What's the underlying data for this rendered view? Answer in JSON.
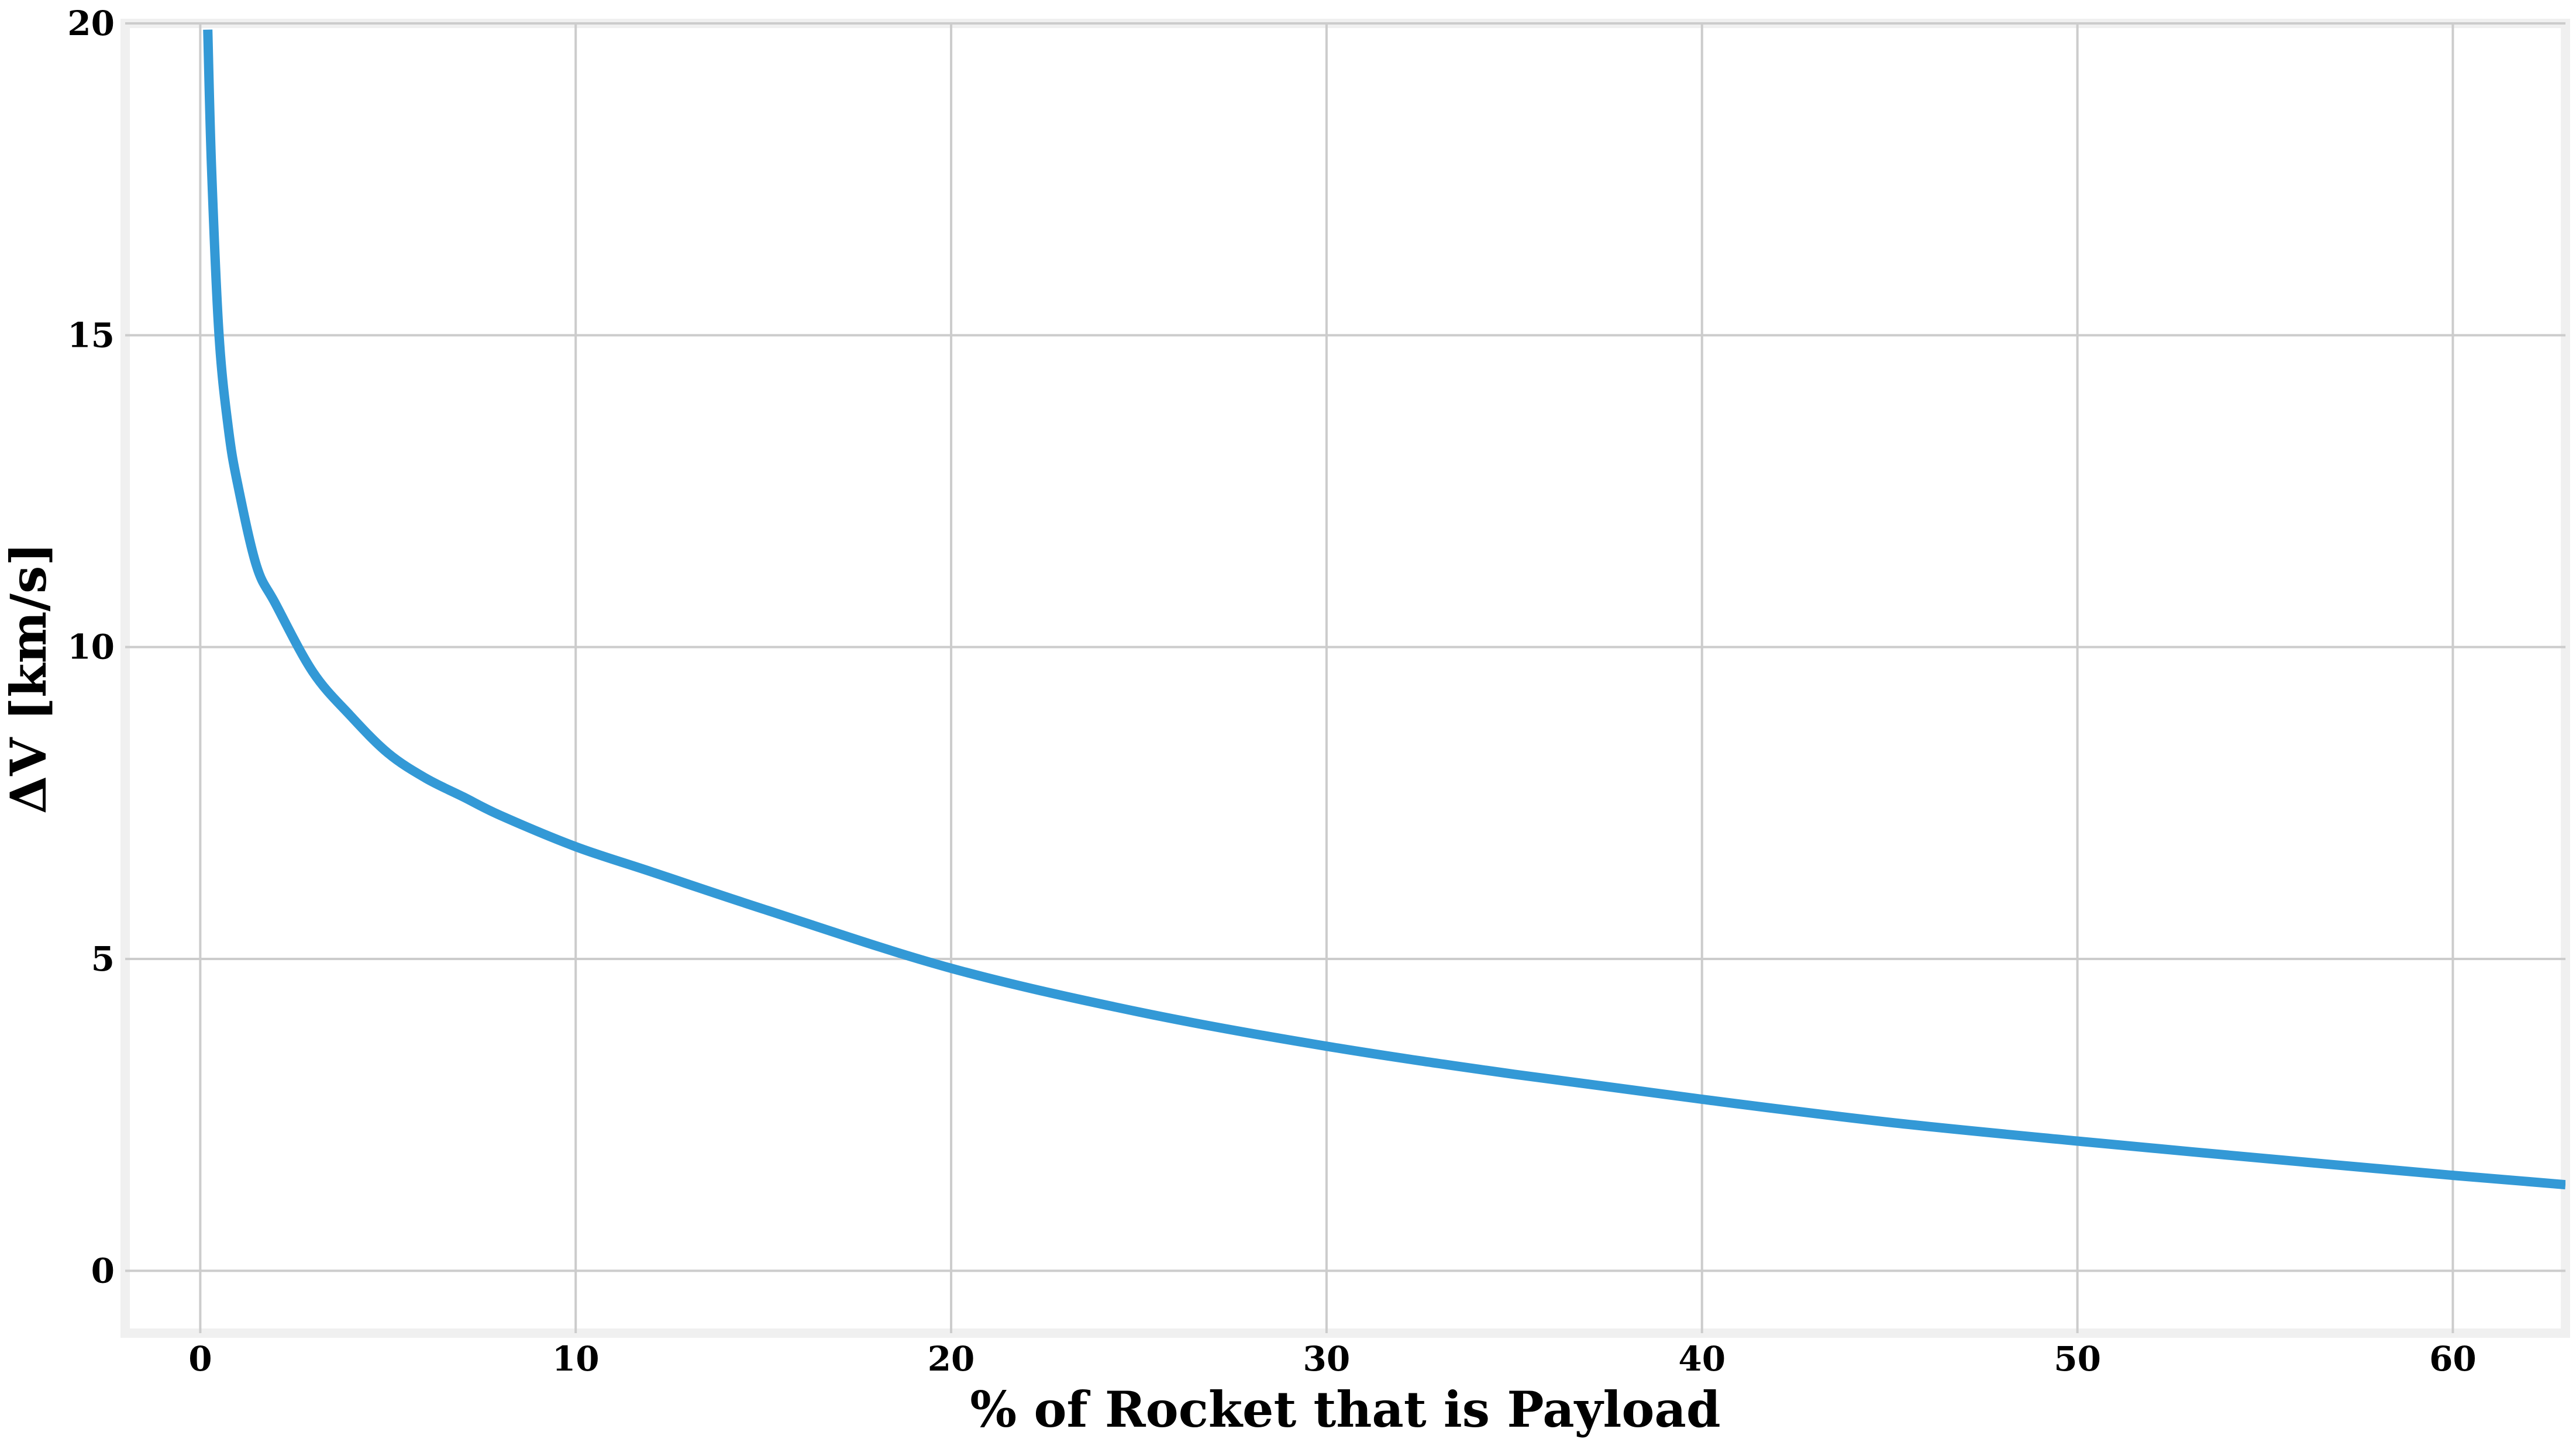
{
  "chart_data": {
    "type": "line",
    "title": "",
    "xlabel": "% of Rocket that is Payload",
    "ylabel": "ΔV [km/s]",
    "xlim": [
      -2,
      63
    ],
    "ylim": [
      -1,
      20
    ],
    "xticks": [
      0,
      10,
      20,
      30,
      40,
      50,
      60
    ],
    "yticks": [
      0,
      5,
      10,
      15,
      20
    ],
    "xtick_labels": [
      "0",
      "10",
      "20",
      "30",
      "40",
      "50",
      "60"
    ],
    "ytick_labels": [
      "0",
      "5",
      "10",
      "15",
      "20"
    ],
    "grid": true,
    "legend": "none",
    "colors": {
      "line": "#3399d6",
      "grid": "#cccccc",
      "frame": "#f0f0f0",
      "background": "#ffffff"
    },
    "series": [
      {
        "x": [
          0.2,
          0.3,
          0.5,
          0.75,
          1,
          1.5,
          2,
          3,
          4,
          5,
          6,
          7,
          8,
          10,
          12,
          15,
          20,
          25,
          30,
          35,
          40,
          45,
          50,
          55,
          60,
          63
        ],
        "y": [
          19.9,
          17.7,
          15.0,
          13.5,
          12.6,
          11.3,
          10.7,
          9.6,
          8.9,
          8.3,
          7.9,
          7.6,
          7.3,
          6.8,
          6.4,
          5.8,
          4.85,
          4.15,
          3.6,
          3.15,
          2.75,
          2.38,
          2.08,
          1.8,
          1.53,
          1.38
        ]
      }
    ]
  }
}
